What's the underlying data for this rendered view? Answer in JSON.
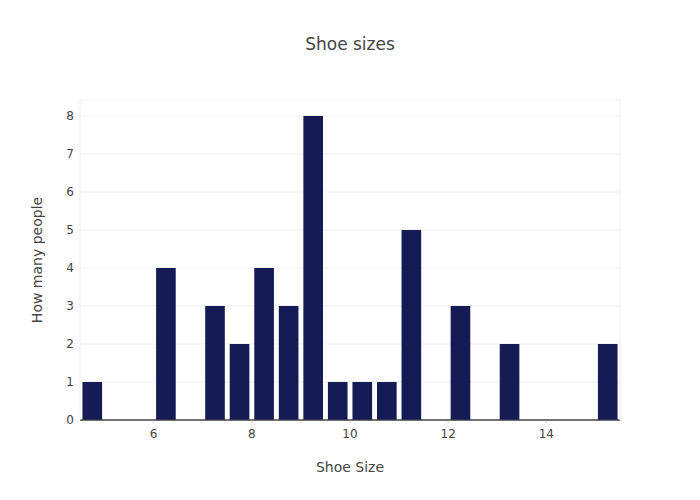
{
  "chart_data": {
    "type": "histogram",
    "title": "Shoe sizes",
    "x_label": "Shoe Size",
    "y_label": "How many people",
    "bins": [
      4.5,
      5,
      5.5,
      6,
      6.5,
      7,
      7.5,
      8,
      8.5,
      9,
      9.5,
      10,
      10.5,
      11,
      11.5,
      12,
      12.5,
      13,
      13.5,
      14,
      14.5,
      15,
      15.5
    ],
    "values": [
      1,
      0,
      0,
      4,
      0,
      3,
      2,
      4,
      3,
      8,
      1,
      1,
      1,
      5,
      0,
      3,
      0,
      2,
      0,
      0,
      0,
      2
    ],
    "color": "#151b54",
    "xlim": [
      4.5,
      15.5
    ],
    "ylim": [
      0,
      8.42
    ],
    "xticks": [
      6,
      8,
      10,
      12,
      14
    ],
    "yticks": [
      0,
      1,
      2,
      3,
      4,
      5,
      6,
      7,
      8
    ],
    "grid": true
  }
}
